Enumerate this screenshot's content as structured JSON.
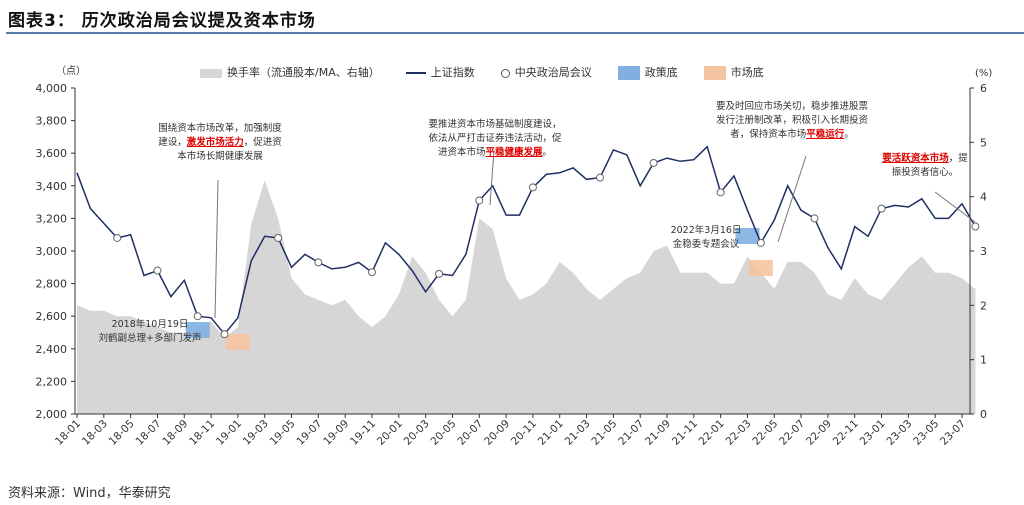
{
  "title": "图表3： 历次政治局会议提及资本市场",
  "source": "资料来源：Wind，华泰研究",
  "chart_data": {
    "type": "line",
    "left_unit": "（点）",
    "right_unit": "(%)",
    "ylim": [
      2000,
      4000
    ],
    "y2lim": [
      0,
      6
    ],
    "yticks": [
      "2,000",
      "2,200",
      "2,400",
      "2,600",
      "2,800",
      "3,000",
      "3,200",
      "3,400",
      "3,600",
      "3,800",
      "4,000"
    ],
    "y2ticks": [
      "0",
      "1",
      "2",
      "3",
      "4",
      "5",
      "6"
    ],
    "xticks": [
      "18-01",
      "18-03",
      "18-05",
      "18-07",
      "18-09",
      "18-11",
      "19-01",
      "19-03",
      "19-05",
      "19-07",
      "19-09",
      "19-11",
      "20-01",
      "20-03",
      "20-05",
      "20-07",
      "20-09",
      "20-11",
      "21-01",
      "21-03",
      "21-05",
      "21-07",
      "21-09",
      "21-11",
      "22-01",
      "22-03",
      "22-05",
      "22-07",
      "22-09",
      "22-11",
      "23-01",
      "23-03",
      "23-05",
      "23-07"
    ],
    "legend": [
      "换手率（流通股本/MA、右轴）",
      "上证指数",
      "中央政治局会议",
      "政策底",
      "市场底"
    ],
    "series": [
      {
        "name": "上证指数",
        "axis": "left",
        "values": [
          3480,
          3260,
          3170,
          3080,
          3100,
          2850,
          2880,
          2720,
          2820,
          2600,
          2590,
          2490,
          2590,
          2940,
          3090,
          3080,
          2900,
          2980,
          2930,
          2890,
          2900,
          2930,
          2870,
          3050,
          2980,
          2880,
          2750,
          2860,
          2850,
          2980,
          3310,
          3400,
          3220,
          3220,
          3390,
          3470,
          3480,
          3510,
          3440,
          3450,
          3620,
          3590,
          3400,
          3540,
          3570,
          3550,
          3560,
          3640,
          3360,
          3460,
          3250,
          3050,
          3190,
          3400,
          3250,
          3200,
          3020,
          2890,
          3150,
          3090,
          3260,
          3280,
          3270,
          3320,
          3200,
          3200,
          3290,
          3150
        ]
      },
      {
        "name": "换手率",
        "axis": "right",
        "values": [
          2.0,
          1.9,
          1.9,
          1.8,
          1.8,
          1.7,
          1.6,
          1.5,
          1.5,
          1.6,
          1.7,
          1.4,
          1.6,
          3.5,
          4.3,
          3.6,
          2.5,
          2.2,
          2.1,
          2.0,
          2.1,
          1.8,
          1.6,
          1.8,
          2.2,
          2.9,
          2.6,
          2.1,
          1.8,
          2.1,
          3.6,
          3.4,
          2.5,
          2.1,
          2.2,
          2.4,
          2.8,
          2.6,
          2.3,
          2.1,
          2.3,
          2.5,
          2.6,
          3.0,
          3.1,
          2.6,
          2.6,
          2.6,
          2.4,
          2.4,
          2.9,
          2.6,
          2.3,
          2.8,
          2.8,
          2.6,
          2.2,
          2.1,
          2.5,
          2.2,
          2.1,
          2.4,
          2.7,
          2.9,
          2.6,
          2.6,
          2.5,
          2.3
        ]
      }
    ],
    "meetings_month_index": [
      3,
      6,
      9,
      11,
      15,
      18,
      22,
      27,
      30,
      34,
      39,
      43,
      48,
      51,
      55,
      60,
      67
    ],
    "policy_bottoms": [
      "2018-10",
      "2022-03"
    ],
    "market_bottoms": [
      "2019-01",
      "2022-04"
    ],
    "colors": {
      "index": "#1f2f66",
      "turnover": "#d6d6d6",
      "policy": "#7fb0e0",
      "market": "#f6c4a0"
    },
    "annotations": [
      {
        "pre": "围绕资本市场改革，加强制度建设，",
        "hl": "激发市场活力",
        "post": "，促进资本市场长期健康发展"
      },
      {
        "pre": "要推进资本市场基础制度建设，依法从严打击证券违法活动，促进资本市场",
        "hl": "平稳健康发展",
        "post": "。"
      },
      {
        "pre": "要及时回应市场关切，稳步推进股票发行注册制改革，积极引入长期投资者，保持资本市场",
        "hl": "平稳运行",
        "post": "。"
      },
      {
        "pre": "",
        "hl": "要活跃资本市场",
        "post": "，提振投资者信心。"
      },
      {
        "pre": "2018年10月19日",
        "hl": "",
        "post": "刘鹤副总理+多部门发声"
      },
      {
        "pre": "2022年3月16日",
        "hl": "",
        "post": "金稳委专题会议"
      }
    ]
  }
}
